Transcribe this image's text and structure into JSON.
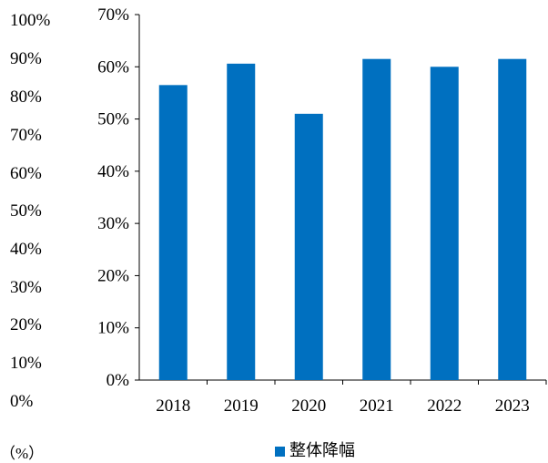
{
  "outer_axis": {
    "ticks": [
      "100%",
      "90%",
      "80%",
      "70%",
      "60%",
      "50%",
      "40%",
      "30%",
      "20%",
      "10%",
      "0%"
    ],
    "unit": "（%）"
  },
  "chart_data": {
    "type": "bar",
    "categories": [
      "2018",
      "2019",
      "2020",
      "2021",
      "2022",
      "2023"
    ],
    "series": [
      {
        "name": "整体降幅",
        "values": [
          56.5,
          60.6,
          51.0,
          61.5,
          60.0,
          61.5
        ]
      }
    ],
    "ylim": [
      0,
      70
    ],
    "yticks": [
      0,
      10,
      20,
      30,
      40,
      50,
      60,
      70
    ],
    "ytick_labels": [
      "0%",
      "10%",
      "20%",
      "30%",
      "40%",
      "50%",
      "60%",
      "70%"
    ],
    "grid": false,
    "legend_position": "bottom",
    "bar_color": "#0070c0"
  }
}
